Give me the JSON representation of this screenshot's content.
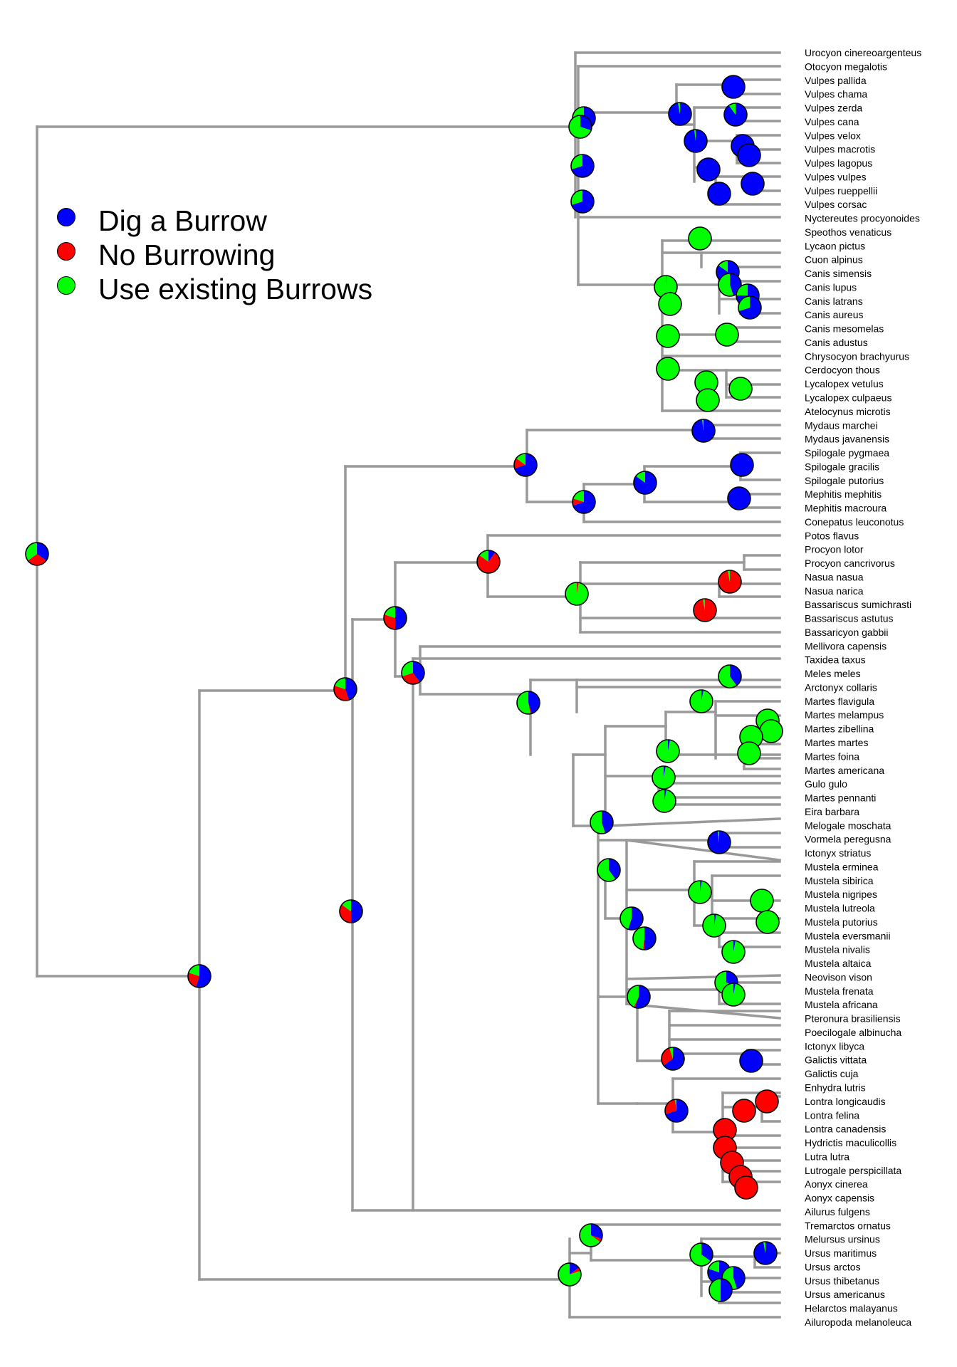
{
  "legend": [
    {
      "label": "Dig a Burrow",
      "color": "#0000ff"
    },
    {
      "label": "No Burrowing",
      "color": "#ff0000"
    },
    {
      "label": "Use existing Burrows",
      "color": "#00ff00"
    }
  ],
  "colors": {
    "branch": "#999999",
    "dig": "#0000ff",
    "none": "#ff0000",
    "use": "#00ff00"
  },
  "tips": [
    "Urocyon cinereoargenteus",
    "Otocyon megalotis",
    "Vulpes pallida",
    "Vulpes chama",
    "Vulpes zerda",
    "Vulpes cana",
    "Vulpes velox",
    "Vulpes macrotis",
    "Vulpes lagopus",
    "Vulpes vulpes",
    "Vulpes rueppellii",
    "Vulpes corsac",
    "Nyctereutes procyonoides",
    "Speothos venaticus",
    "Lycaon pictus",
    "Cuon alpinus",
    "Canis simensis",
    "Canis lupus",
    "Canis latrans",
    "Canis aureus",
    "Canis mesomelas",
    "Canis adustus",
    "Chrysocyon brachyurus",
    "Cerdocyon thous",
    "Lycalopex vetulus",
    "Lycalopex culpaeus",
    "Atelocynus microtis",
    "Mydaus marchei",
    "Mydaus javanensis",
    "Spilogale pygmaea",
    "Spilogale gracilis",
    "Spilogale putorius",
    "Mephitis mephitis",
    "Mephitis macroura",
    "Conepatus leuconotus",
    "Potos flavus",
    "Procyon lotor",
    "Procyon cancrivorus",
    "Nasua nasua",
    "Nasua narica",
    "Bassariscus sumichrasti",
    "Bassariscus astutus",
    "Bassaricyon gabbii",
    "Mellivora capensis",
    "Taxidea taxus",
    "Meles meles",
    "Arctonyx collaris",
    "Martes flavigula",
    "Martes melampus",
    "Martes zibellina",
    "Martes martes",
    "Martes foina",
    "Martes americana",
    "Gulo gulo",
    "Martes pennanti",
    "Eira barbara",
    "Melogale moschata",
    "Vormela peregusna",
    "Ictonyx striatus",
    "Mustela erminea",
    "Mustela sibirica",
    "Mustela nigripes",
    "Mustela lutreola",
    "Mustela putorius",
    "Mustela eversmanii",
    "Mustela nivalis",
    "Mustela altaica",
    "Neovison vison",
    "Mustela frenata",
    "Mustela africana",
    "Pteronura brasiliensis",
    "Poecilogale albinucha",
    "Ictonyx libyca",
    "Galictis vittata",
    "Galictis cuja",
    "Enhydra lutris",
    "Lontra longicaudis",
    "Lontra felina",
    "Lontra canadensis",
    "Hydrictis maculicollis",
    "Lutra lutra",
    "Lutrogale perspicillata",
    "Aonyx cinerea",
    "Aonyx capensis",
    "Ailurus fulgens",
    "Tremarctos ornatus",
    "Melursus ursinus",
    "Ursus maritimus",
    "Ursus arctos",
    "Ursus thibetanus",
    "Ursus americanus",
    "Helarctos malayanus",
    "Ailuropoda melanoleuca"
  ],
  "nodes": [
    {
      "id": "root",
      "p": [
        0.35,
        0.3,
        0.35
      ]
    },
    {
      "id": "canidae",
      "p": [
        0.6,
        0.0,
        0.4
      ]
    },
    {
      "id": "caniformia-rest",
      "p": [
        0.55,
        0.25,
        0.2
      ]
    },
    {
      "id": "musteloidea",
      "p": [
        0.45,
        0.35,
        0.2
      ]
    },
    {
      "id": "ursidae",
      "p": [
        0.15,
        0.05,
        0.8
      ]
    },
    {
      "id": "musteloidea-inner",
      "p": [
        0.5,
        0.35,
        0.15
      ]
    },
    {
      "id": "mephitidae",
      "p": [
        0.7,
        0.15,
        0.15
      ]
    },
    {
      "id": "procyonidae+mustelidae",
      "p": [
        0.5,
        0.3,
        0.2
      ]
    },
    {
      "id": "procyonidae",
      "p": [
        0.1,
        0.75,
        0.15
      ]
    },
    {
      "id": "mustelidae",
      "p": [
        0.4,
        0.3,
        0.3
      ]
    },
    {
      "id": "mustelidae-inner",
      "p": [
        0.45,
        0.02,
        0.53
      ]
    },
    {
      "id": "lutrinae",
      "p": [
        0.65,
        0.3,
        0.05
      ]
    }
  ]
}
